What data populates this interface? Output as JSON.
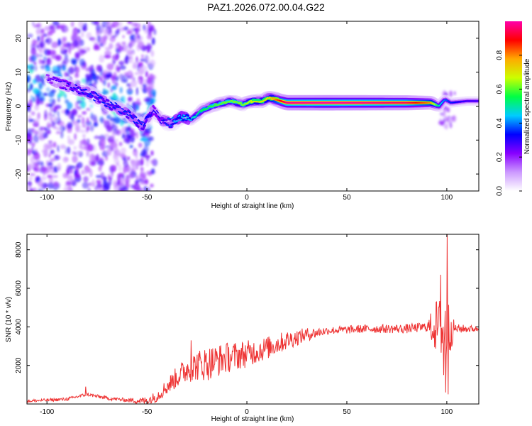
{
  "title": "PAZ1.2026.072.00.04.G22",
  "chart_data": [
    {
      "type": "heatmap",
      "xlabel": "Height of straight line (km)",
      "ylabel": "Frequency (Hz)",
      "xlim": [
        -110,
        116
      ],
      "ylim": [
        -25,
        25
      ],
      "xticks": [
        -100,
        -50,
        0,
        50,
        100
      ],
      "yticks": [
        -20,
        -10,
        0,
        10,
        20
      ],
      "xtick_labels": [
        "-100",
        "-50",
        "0",
        "50",
        "100"
      ],
      "ytick_labels": [
        "-20",
        "-10",
        "0",
        "10",
        "20"
      ],
      "ridge": {
        "x": [
          -100,
          -90,
          -80,
          -70,
          -60,
          -52,
          -47,
          -43,
          -38,
          -33,
          -28,
          -22,
          -15,
          -8,
          -2,
          3,
          8,
          11,
          20,
          40,
          60,
          80,
          92,
          96,
          99,
          102,
          110,
          116
        ],
        "y": [
          8,
          6,
          4,
          1,
          -2,
          -6,
          -1,
          -4,
          -5,
          -3,
          -4,
          -1,
          0.5,
          1.5,
          0.5,
          1.5,
          1.5,
          2.5,
          1,
          1,
          1,
          1,
          1,
          0,
          2,
          1,
          1.5,
          1.5
        ],
        "strength": [
          0.25,
          0.3,
          0.35,
          0.35,
          0.35,
          0.35,
          0.3,
          0.3,
          0.4,
          0.45,
          0.45,
          0.55,
          0.6,
          0.62,
          0.62,
          0.7,
          0.7,
          0.7,
          0.98,
          1.0,
          0.98,
          0.95,
          0.8,
          0.5,
          0.4,
          0.35,
          0.3,
          0.3
        ]
      },
      "colorbar": {
        "label": "Normalized spectral amplitude",
        "ticks": [
          0.0,
          0.2,
          0.4,
          0.6,
          0.8
        ],
        "tick_labels": [
          "0.0",
          "0.2",
          "0.4",
          "0.6",
          "0.8"
        ],
        "range": [
          0,
          1
        ],
        "colormap": [
          "#ffffff",
          "#cc99ff",
          "#8800ff",
          "#0000ff",
          "#00ccff",
          "#00ff44",
          "#ccff00",
          "#ffaa00",
          "#ff0000",
          "#ff00aa"
        ]
      }
    },
    {
      "type": "line",
      "xlabel": "Height of straight line (km)",
      "ylabel": "SNR (10 * v/v)",
      "xlim": [
        -110,
        116
      ],
      "ylim": [
        0,
        8800
      ],
      "xticks": [
        -100,
        -50,
        0,
        50,
        100
      ],
      "yticks": [
        2000,
        4000,
        6000,
        8000
      ],
      "xtick_labels": [
        "-100",
        "-50",
        "0",
        "50",
        "100"
      ],
      "ytick_labels": [
        "2000",
        "4000",
        "6000",
        "8000"
      ],
      "series": [
        {
          "name": "SNR",
          "color": "#ee3333",
          "trend_x": [
            -110,
            -90,
            -80,
            -70,
            -60,
            -50,
            -45,
            -40,
            -35,
            -30,
            -25,
            -20,
            -10,
            0,
            10,
            20,
            30,
            40,
            60,
            80,
            90,
            95,
            98,
            100,
            103,
            110,
            116
          ],
          "trend_y": [
            150,
            250,
            500,
            300,
            200,
            150,
            400,
            900,
            1400,
            1800,
            2000,
            2100,
            2400,
            2600,
            2900,
            3300,
            3600,
            3800,
            3900,
            3900,
            4000,
            4000,
            3800,
            3800,
            3900,
            3900,
            3900
          ],
          "noise_x": [
            -110,
            -60,
            -45,
            -30,
            -20,
            0,
            20,
            40,
            90,
            95,
            100,
            104,
            116
          ],
          "noise_y": [
            80,
            100,
            300,
            700,
            900,
            700,
            500,
            200,
            250,
            1500,
            2000,
            250,
            150
          ],
          "spikes": [
            {
              "x": -80.5,
              "y": 900
            },
            {
              "x": -28,
              "y": 3300
            },
            {
              "x": 97,
              "y": 6700
            },
            {
              "x": 98.5,
              "y": 1500
            },
            {
              "x": 99.5,
              "y": 600
            },
            {
              "x": 100.2,
              "y": 8800
            },
            {
              "x": 100.8,
              "y": 500
            }
          ]
        }
      ]
    }
  ]
}
